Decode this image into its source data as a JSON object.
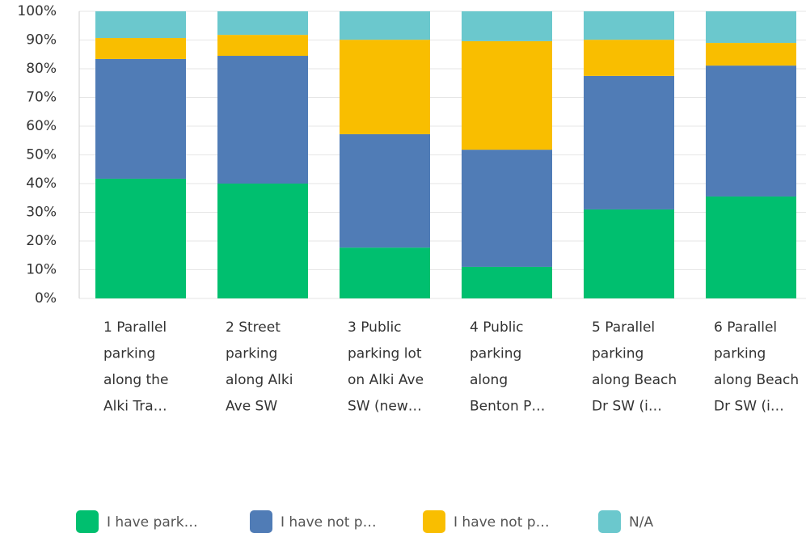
{
  "chart_data": {
    "type": "stacked_bar",
    "categories": [
      "1 Parallel\nparking\nalong the\nAlki Tra…",
      "2 Street\nparking\nalong Alki\nAve SW",
      "3 Public\nparking lot\non Alki Ave\nSW (new…",
      "4 Public\nparking\nalong\nBenton P…",
      "5 Parallel\nparking\nalong Beach\nDr SW (i…",
      "6 Parallel\nparking\nalong Beach\nDr SW (i…"
    ],
    "series": [
      {
        "name": "I have park…",
        "color": "#00bf6f",
        "values": [
          41.7,
          40.0,
          17.7,
          11.0,
          31.0,
          35.5
        ]
      },
      {
        "name": "I have not p…",
        "color": "#507cb6",
        "values": [
          41.7,
          44.5,
          39.5,
          40.8,
          46.5,
          45.6
        ]
      },
      {
        "name": "I have not p…",
        "color": "#f9be00",
        "values": [
          7.3,
          7.3,
          32.9,
          37.8,
          12.6,
          7.9
        ]
      },
      {
        "name": "N/A",
        "color": "#6bc8cd",
        "values": [
          9.3,
          8.2,
          9.9,
          10.4,
          9.9,
          11.0
        ]
      }
    ],
    "ylim": [
      0,
      100
    ],
    "yticks": [
      {
        "value": 0,
        "label": "0%"
      },
      {
        "value": 10,
        "label": "10%"
      },
      {
        "value": 20,
        "label": "20%"
      },
      {
        "value": 30,
        "label": "30%"
      },
      {
        "value": 40,
        "label": "40%"
      },
      {
        "value": 50,
        "label": "50%"
      },
      {
        "value": 60,
        "label": "60%"
      },
      {
        "value": 70,
        "label": "70%"
      },
      {
        "value": 80,
        "label": "80%"
      },
      {
        "value": 90,
        "label": "90%"
      },
      {
        "value": 100,
        "label": "100%"
      }
    ],
    "grid": true
  }
}
